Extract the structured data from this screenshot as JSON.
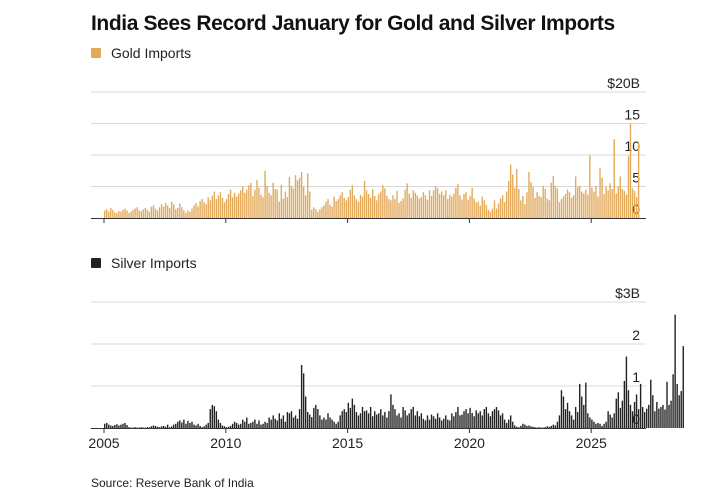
{
  "title": "India Sees Record January for Gold and Silver Imports",
  "source": "Source: Reserve Bank of India",
  "colors": {
    "gold": "#e3aa5c",
    "silver": "#222222",
    "grid": "#d9d9d9",
    "axis": "#333333"
  },
  "chart_data": [
    {
      "type": "bar",
      "name": "gold",
      "title": "Gold Imports",
      "legend": "Gold Imports",
      "unit": "USD billions",
      "y_ticks": [
        0,
        5,
        10,
        15,
        20
      ],
      "y_tick_labels": [
        "0",
        "5",
        "10",
        "15",
        "$20B"
      ],
      "ylim": [
        0,
        20
      ],
      "x_range": [
        2005.0,
        2026.1
      ],
      "x_ticks": [
        2005,
        2010,
        2015,
        2020,
        2025
      ],
      "x_tick_labels": [
        "2005",
        "2010",
        "2015",
        "2020",
        "2025"
      ],
      "start": 2005.0,
      "step": 0.0833333,
      "values": [
        1.2,
        1.4,
        1.0,
        1.6,
        1.3,
        0.9,
        0.8,
        1.1,
        1.0,
        1.3,
        1.5,
        1.2,
        0.8,
        1.0,
        1.3,
        1.5,
        1.7,
        1.2,
        1.1,
        1.4,
        1.6,
        1.3,
        1.0,
        1.8,
        2.0,
        1.5,
        1.2,
        1.7,
        2.2,
        1.8,
        2.4,
        2.0,
        1.6,
        2.6,
        2.2,
        1.4,
        1.6,
        2.3,
        1.7,
        1.2,
        0.8,
        1.2,
        1.0,
        1.5,
        2.0,
        2.4,
        1.8,
        2.7,
        3.0,
        2.5,
        2.2,
        3.3,
        2.8,
        3.5,
        4.2,
        3.0,
        3.6,
        4.1,
        3.2,
        2.5,
        3.0,
        3.8,
        4.5,
        3.3,
        4.0,
        3.4,
        3.9,
        4.4,
        5.0,
        4.0,
        4.5,
        5.2,
        5.6,
        3.5,
        4.5,
        6.0,
        4.8,
        3.7,
        3.3,
        7.5,
        5.1,
        4.0,
        3.6,
        5.6,
        4.6,
        4.5,
        2.6,
        5.3,
        3.1,
        4.2,
        3.3,
        6.5,
        5.1,
        4.7,
        6.8,
        6.0,
        6.4,
        7.3,
        5.0,
        3.6,
        7.1,
        4.2,
        1.3,
        1.7,
        1.4,
        1.0,
        1.4,
        1.7,
        2.0,
        2.6,
        3.0,
        2.1,
        1.8,
        3.4,
        2.7,
        3.0,
        3.6,
        4.1,
        3.2,
        2.8,
        3.3,
        4.5,
        5.2,
        3.6,
        3.0,
        2.6,
        3.7,
        3.4,
        5.9,
        4.4,
        3.8,
        3.2,
        4.6,
        3.5,
        2.8,
        3.8,
        4.2,
        5.2,
        4.7,
        3.5,
        3.0,
        2.8,
        3.6,
        3.0,
        4.3,
        2.4,
        2.7,
        3.1,
        4.5,
        5.5,
        3.9,
        3.2,
        4.4,
        4.0,
        3.6,
        3.1,
        3.3,
        4.1,
        3.6,
        2.9,
        4.4,
        3.5,
        4.4,
        5.1,
        4.7,
        3.8,
        4.2,
        3.6,
        4.4,
        3.0,
        3.7,
        3.4,
        3.9,
        4.8,
        5.4,
        3.6,
        2.9,
        3.8,
        4.1,
        2.9,
        3.5,
        4.8,
        3.1,
        2.5,
        2.6,
        2.0,
        3.4,
        2.8,
        2.1,
        1.3,
        1.0,
        1.5,
        2.8,
        1.5,
        2.3,
        3.1,
        3.6,
        2.5,
        4.2,
        5.9,
        8.5,
        6.9,
        4.8,
        7.8,
        4.6,
        2.8,
        3.5,
        2.2,
        4.1,
        7.3,
        5.7,
        4.9,
        3.2,
        4.1,
        3.5,
        3.3,
        5.1,
        4.6,
        3.1,
        2.8,
        5.6,
        6.7,
        5.1,
        4.7,
        2.5,
        3.0,
        3.4,
        3.8,
        4.5,
        4.1,
        3.2,
        3.6,
        6.6,
        4.9,
        5.1,
        4.2,
        3.9,
        4.5,
        3.7,
        9.9,
        4.8,
        4.2,
        5.1,
        3.4,
        7.9,
        6.4,
        3.8,
        4.9,
        4.4,
        5.5,
        4.6,
        12.5,
        3.9,
        5.0,
        6.6,
        4.6,
        4.3,
        3.7,
        9.8,
        15.0,
        4.7,
        4.3,
        3.3,
        12.1
      ]
    },
    {
      "type": "bar",
      "name": "silver",
      "title": "Silver Imports",
      "legend": "Silver Imports",
      "unit": "USD billions",
      "y_ticks": [
        0,
        1,
        2,
        3
      ],
      "y_tick_labels": [
        "0",
        "1",
        "2",
        "$3B"
      ],
      "ylim": [
        0,
        3
      ],
      "x_range": [
        2005.0,
        2026.1
      ],
      "x_ticks": [
        2005,
        2010,
        2015,
        2020,
        2025
      ],
      "x_tick_labels": [
        "2005",
        "2010",
        "2015",
        "2020",
        "2025"
      ],
      "start": 2005.0,
      "step": 0.0833333,
      "values": [
        0.1,
        0.12,
        0.08,
        0.06,
        0.05,
        0.07,
        0.09,
        0.06,
        0.08,
        0.1,
        0.12,
        0.07,
        0.02,
        0.01,
        0.01,
        0.02,
        0.01,
        0.01,
        0.02,
        0.01,
        0.01,
        0.02,
        0.02,
        0.04,
        0.06,
        0.05,
        0.03,
        0.02,
        0.04,
        0.05,
        0.03,
        0.08,
        0.02,
        0.04,
        0.08,
        0.1,
        0.15,
        0.18,
        0.13,
        0.2,
        0.1,
        0.17,
        0.12,
        0.15,
        0.08,
        0.06,
        0.1,
        0.05,
        0.02,
        0.04,
        0.08,
        0.12,
        0.45,
        0.55,
        0.52,
        0.4,
        0.2,
        0.12,
        0.06,
        0.04,
        0.02,
        0.03,
        0.05,
        0.1,
        0.15,
        0.12,
        0.08,
        0.1,
        0.2,
        0.15,
        0.25,
        0.1,
        0.12,
        0.15,
        0.2,
        0.1,
        0.18,
        0.08,
        0.1,
        0.15,
        0.12,
        0.25,
        0.2,
        0.3,
        0.22,
        0.18,
        0.35,
        0.22,
        0.3,
        0.15,
        0.38,
        0.35,
        0.4,
        0.25,
        0.3,
        0.22,
        0.45,
        1.5,
        1.3,
        0.75,
        0.38,
        0.32,
        0.26,
        0.48,
        0.55,
        0.45,
        0.3,
        0.2,
        0.25,
        0.2,
        0.35,
        0.25,
        0.2,
        0.15,
        0.1,
        0.15,
        0.3,
        0.4,
        0.45,
        0.38,
        0.6,
        0.48,
        0.7,
        0.55,
        0.38,
        0.3,
        0.35,
        0.5,
        0.4,
        0.42,
        0.35,
        0.5,
        0.28,
        0.4,
        0.32,
        0.35,
        0.45,
        0.3,
        0.38,
        0.25,
        0.4,
        0.8,
        0.55,
        0.45,
        0.3,
        0.35,
        0.25,
        0.5,
        0.42,
        0.3,
        0.35,
        0.45,
        0.5,
        0.3,
        0.4,
        0.28,
        0.35,
        0.22,
        0.18,
        0.3,
        0.2,
        0.32,
        0.28,
        0.22,
        0.35,
        0.25,
        0.18,
        0.22,
        0.3,
        0.2,
        0.18,
        0.35,
        0.28,
        0.38,
        0.5,
        0.3,
        0.32,
        0.4,
        0.45,
        0.35,
        0.48,
        0.36,
        0.28,
        0.42,
        0.35,
        0.4,
        0.3,
        0.45,
        0.5,
        0.35,
        0.28,
        0.4,
        0.45,
        0.5,
        0.42,
        0.3,
        0.35,
        0.2,
        0.12,
        0.2,
        0.3,
        0.15,
        0.06,
        0.03,
        0.02,
        0.05,
        0.1,
        0.08,
        0.05,
        0.06,
        0.04,
        0.03,
        0.02,
        0.01,
        0.02,
        0.01,
        0.01,
        0.02,
        0.04,
        0.03,
        0.05,
        0.08,
        0.06,
        0.15,
        0.3,
        0.9,
        0.75,
        0.45,
        0.6,
        0.4,
        0.3,
        0.2,
        0.5,
        0.38,
        1.05,
        0.75,
        0.55,
        1.08,
        0.35,
        0.25,
        0.2,
        0.15,
        0.1,
        0.12,
        0.1,
        0.05,
        0.1,
        0.15,
        0.4,
        0.32,
        0.25,
        0.35,
        0.7,
        0.85,
        0.48,
        0.65,
        1.12,
        1.7,
        0.9,
        0.55,
        0.4,
        0.62,
        0.8,
        0.45,
        1.05,
        0.5,
        0.38,
        0.46,
        0.55,
        1.15,
        0.78,
        0.4,
        0.62,
        0.46,
        0.5,
        0.55,
        0.44,
        1.1,
        0.55,
        0.65,
        1.28,
        2.7,
        1.05,
        0.78,
        0.88,
        1.95
      ]
    }
  ]
}
